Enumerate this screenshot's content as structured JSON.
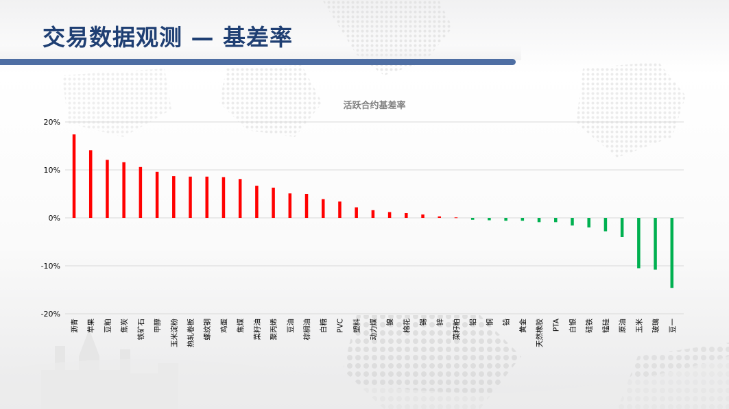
{
  "slide": {
    "title": "交易数据观测 — 基差率"
  },
  "chart_data": {
    "type": "bar",
    "title": "活跃合约基差率",
    "xlabel": "",
    "ylabel": "",
    "ylim": [
      -20,
      20
    ],
    "yticks": [
      "20%",
      "10%",
      "0%",
      "-10%",
      "-20%"
    ],
    "ytick_values": [
      20,
      10,
      0,
      -10,
      -20
    ],
    "grid": true,
    "legend": "none",
    "positive_color": "#ff0000",
    "negative_color": "#00b050",
    "categories": [
      "沥青",
      "苹果",
      "豆粕",
      "焦炭",
      "铁矿石",
      "甲醇",
      "玉米淀粉",
      "热轧卷板",
      "螺纹钢",
      "鸡蛋",
      "焦煤",
      "菜籽油",
      "聚丙烯",
      "豆油",
      "棕榈油",
      "白糖",
      "PVC",
      "塑料",
      "动力煤",
      "镍",
      "棉花",
      "锡",
      "锌",
      "菜籽粕",
      "铝",
      "铜",
      "铅",
      "黄金",
      "天然橡胶",
      "PTA",
      "白银",
      "硅铁",
      "锰硅",
      "原油",
      "玉米",
      "玻璃",
      "豆一"
    ],
    "values": [
      17.4,
      14.1,
      12.1,
      11.6,
      10.6,
      9.6,
      8.7,
      8.6,
      8.6,
      8.5,
      8.1,
      6.7,
      6.3,
      5.1,
      5.0,
      3.9,
      3.4,
      2.2,
      1.6,
      1.2,
      1.0,
      0.7,
      0.3,
      0.1,
      -0.4,
      -0.5,
      -0.6,
      -0.6,
      -0.9,
      -0.9,
      -1.6,
      -2.0,
      -2.8,
      -4.0,
      -10.5,
      -10.8,
      -14.6
    ]
  }
}
